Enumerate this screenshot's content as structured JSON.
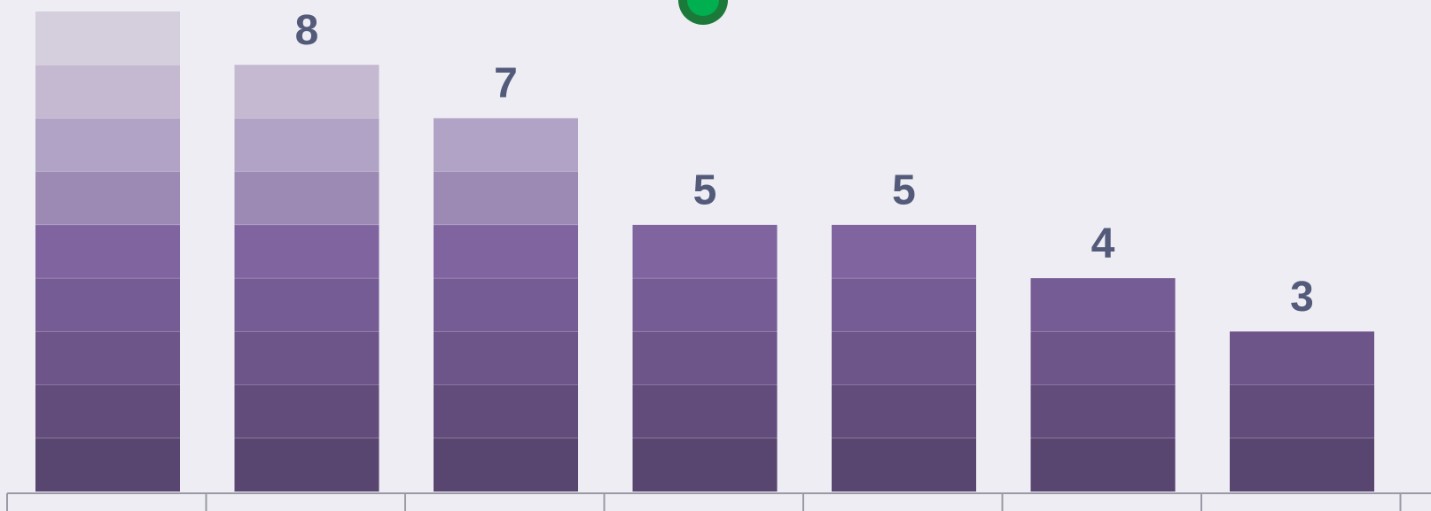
{
  "chart_data": {
    "type": "bar",
    "values": [
      9,
      8,
      7,
      5,
      5,
      4,
      3
    ],
    "block_colors": [
      "#584570",
      "#624c7c",
      "#6e5589",
      "#765c95",
      "#8064a0",
      "#9c8ab4",
      "#b1a3c5",
      "#c4b9d1",
      "#d5cfdd"
    ],
    "label_color": "#535a7a",
    "ylim": [
      0,
      9
    ]
  }
}
